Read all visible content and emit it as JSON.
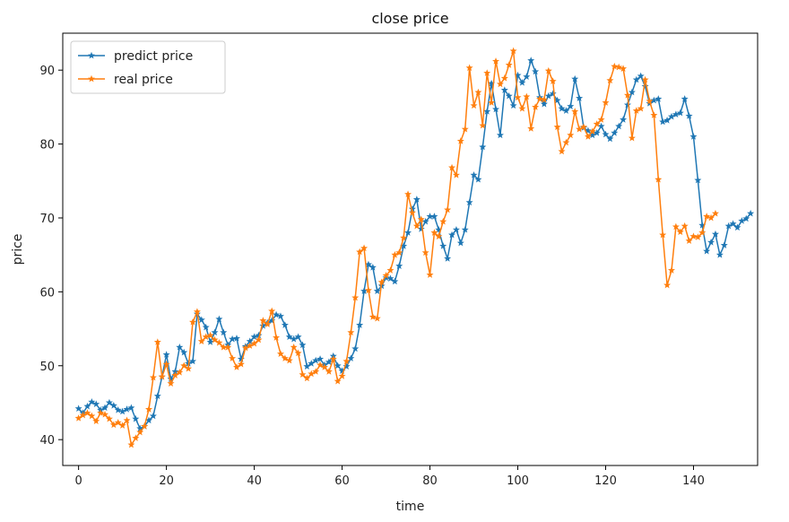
{
  "chart_data": {
    "type": "line",
    "title": "close price",
    "xlabel": "time",
    "ylabel": "price",
    "xlim": [
      -3.6,
      154.6
    ],
    "ylim": [
      36.5,
      95
    ],
    "xticks": [
      0,
      20,
      40,
      60,
      80,
      100,
      120,
      140
    ],
    "yticks": [
      40,
      50,
      60,
      70,
      80,
      90
    ],
    "grid": false,
    "legend_position": "upper-left",
    "series": [
      {
        "name": "predict price",
        "color": "#1f77b4",
        "marker": "star",
        "values": [
          44.2,
          43.6,
          44.5,
          45.1,
          44.8,
          44.0,
          44.3,
          45.0,
          44.6,
          44.0,
          43.8,
          44.1,
          44.3,
          42.8,
          41.5,
          41.8,
          42.6,
          43.2,
          45.9,
          48.5,
          51.5,
          48.2,
          49.2,
          52.5,
          51.8,
          50.3,
          50.6,
          57.0,
          56.2,
          55.2,
          53.2,
          54.5,
          56.3,
          54.5,
          52.8,
          53.6,
          53.7,
          50.9,
          52.6,
          53.3,
          53.9,
          54.1,
          55.4,
          55.8,
          56.1,
          56.9,
          56.7,
          55.5,
          53.9,
          53.6,
          53.9,
          52.8,
          49.9,
          50.3,
          50.7,
          50.9,
          50.1,
          50.5,
          51.3,
          50.0,
          49.3,
          49.9,
          51.0,
          52.3,
          55.5,
          60.1,
          63.7,
          63.3,
          60.1,
          60.8,
          61.9,
          61.8,
          61.4,
          63.5,
          66.2,
          68.0,
          71.2,
          72.5,
          68.5,
          69.5,
          70.2,
          70.2,
          68.4,
          66.2,
          64.5,
          67.7,
          68.4,
          66.6,
          68.4,
          72.1,
          75.8,
          75.2,
          79.6,
          84.4,
          88.2,
          84.7,
          81.2,
          87.3,
          86.5,
          85.2,
          89.3,
          88.3,
          89.1,
          91.3,
          89.8,
          86.3,
          85.4,
          86.5,
          86.8,
          85.9,
          84.8,
          84.5,
          85.1,
          88.8,
          86.2,
          82.2,
          81.8,
          81.2,
          81.5,
          82.4,
          81.3,
          80.7,
          81.5,
          82.4,
          83.3,
          85.3,
          87.0,
          88.7,
          89.2,
          87.8,
          85.5,
          85.9,
          86.1,
          83.0,
          83.2,
          83.7,
          84.0,
          84.2,
          86.1,
          83.8,
          81.0,
          75.1,
          69.0,
          65.5,
          66.7,
          67.8,
          65.0,
          66.3,
          68.9,
          69.2,
          68.7,
          69.6,
          69.9,
          70.6
        ]
      },
      {
        "name": "real price",
        "color": "#ff7f0e",
        "marker": "star",
        "values": [
          42.9,
          43.3,
          43.6,
          43.2,
          42.5,
          43.6,
          43.4,
          42.8,
          42.0,
          42.3,
          41.9,
          42.6,
          39.3,
          40.2,
          41.0,
          41.8,
          44.1,
          48.4,
          53.2,
          48.5,
          50.2,
          47.6,
          48.7,
          49.1,
          50.0,
          49.6,
          55.9,
          57.3,
          53.3,
          53.9,
          54.1,
          53.5,
          53.1,
          52.5,
          52.5,
          51.0,
          49.8,
          50.2,
          52.4,
          52.7,
          53.0,
          53.5,
          56.1,
          55.6,
          57.4,
          53.8,
          51.6,
          51.0,
          50.7,
          52.5,
          51.7,
          48.8,
          48.3,
          48.9,
          49.2,
          50.1,
          49.8,
          49.2,
          50.9,
          47.9,
          48.6,
          50.6,
          54.5,
          59.2,
          65.4,
          65.9,
          60.2,
          56.6,
          56.4,
          61.3,
          62.2,
          62.9,
          65.0,
          65.3,
          67.3,
          73.2,
          70.7,
          68.9,
          69.8,
          65.3,
          62.3,
          68.0,
          67.5,
          69.5,
          71.1,
          76.8,
          75.8,
          80.4,
          82.0,
          90.3,
          85.2,
          87.0,
          82.5,
          89.6,
          85.6,
          91.2,
          88.1,
          88.9,
          90.7,
          92.6,
          86.3,
          84.8,
          86.4,
          82.1,
          85.0,
          86.1,
          86.0,
          89.9,
          88.5,
          82.3,
          79.0,
          80.2,
          81.2,
          84.4,
          82.0,
          82.3,
          81.0,
          81.7,
          82.7,
          83.3,
          85.6,
          88.6,
          90.5,
          90.4,
          90.2,
          86.6,
          80.8,
          84.5,
          84.8,
          88.7,
          85.8,
          83.9,
          75.2,
          67.7,
          60.9,
          62.9,
          68.8,
          68.1,
          68.9,
          66.9,
          67.5,
          67.4,
          68.0,
          70.2,
          70.0,
          70.6
        ]
      }
    ]
  }
}
